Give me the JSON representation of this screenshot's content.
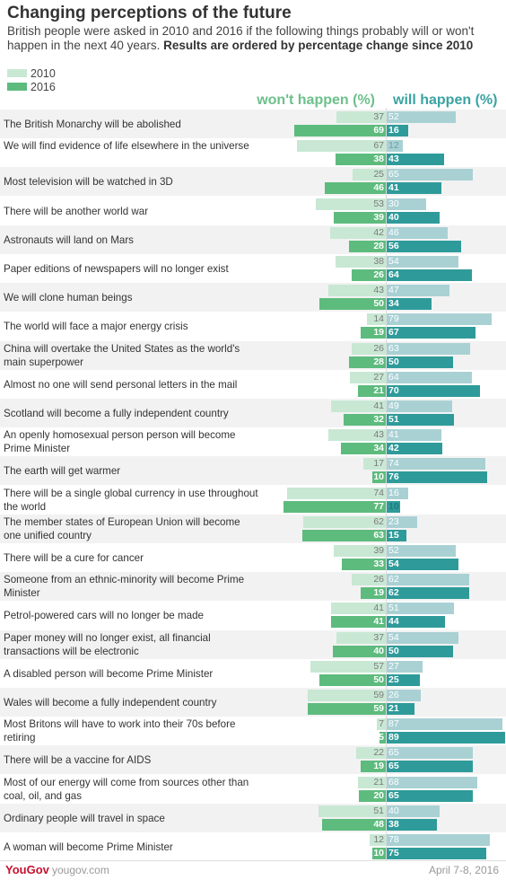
{
  "title": "Changing perceptions of the future",
  "subtitle": "British people were asked in 2010 and 2016 if the following things probably will or won't happen in the next 40 years.",
  "subtitle_bold": "Results are ordered by percentage change since 2010",
  "colors": {
    "wont_2010": "#c8e8d4",
    "wont_2016": "#5dbb7d",
    "will_2010": "#a9d1d4",
    "will_2016": "#2e9b9a"
  },
  "footer": {
    "logo": "YouGov",
    "site": "yougov.com",
    "date": "April 7-8, 2016"
  },
  "chart_data": {
    "type": "bar",
    "legend": [
      "2010",
      "2016"
    ],
    "left_header": "won't happen (%)",
    "right_header": "will happen (%)",
    "rows": [
      {
        "label": "The British Monarchy will be abolished",
        "wont_2010": 37,
        "will_2010": 52,
        "wont_2016": 69,
        "will_2016": 16
      },
      {
        "label": "We will find evidence of life elsewhere in the universe",
        "wont_2010": 67,
        "will_2010": 12,
        "wont_2016": 38,
        "will_2016": 43
      },
      {
        "label": "Most television will be watched in 3D",
        "wont_2010": 25,
        "will_2010": 65,
        "wont_2016": 46,
        "will_2016": 41
      },
      {
        "label": "There will be another world war",
        "wont_2010": 53,
        "will_2010": 30,
        "wont_2016": 39,
        "will_2016": 40
      },
      {
        "label": "Astronauts will land on Mars",
        "wont_2010": 42,
        "will_2010": 46,
        "wont_2016": 28,
        "will_2016": 56
      },
      {
        "label": "Paper editions of newspapers will no longer exist",
        "wont_2010": 38,
        "will_2010": 54,
        "wont_2016": 26,
        "will_2016": 64
      },
      {
        "label": "We will clone human beings",
        "wont_2010": 43,
        "will_2010": 47,
        "wont_2016": 50,
        "will_2016": 34
      },
      {
        "label": "The world will face a major energy crisis",
        "wont_2010": 14,
        "will_2010": 79,
        "wont_2016": 19,
        "will_2016": 67
      },
      {
        "label": "China will overtake the United States as the world's main superpower",
        "wont_2010": 26,
        "will_2010": 63,
        "wont_2016": 28,
        "will_2016": 50
      },
      {
        "label": "Almost no one will send personal letters in the mail",
        "wont_2010": 27,
        "will_2010": 64,
        "wont_2016": 21,
        "will_2016": 70
      },
      {
        "label": "Scotland will become a fully independent country",
        "wont_2010": 41,
        "will_2010": 49,
        "wont_2016": 32,
        "will_2016": 51
      },
      {
        "label": "An openly homosexual person person will become Prime Minister",
        "wont_2010": 43,
        "will_2010": 41,
        "wont_2016": 34,
        "will_2016": 42
      },
      {
        "label": "The earth will get warmer",
        "wont_2010": 17,
        "will_2010": 74,
        "wont_2016": 10,
        "will_2016": 76
      },
      {
        "label": "There will be a single global currency in use throughout the world",
        "wont_2010": 74,
        "will_2010": 16,
        "wont_2016": 77,
        "will_2016": 10
      },
      {
        "label": "The member states of European Union will become one unified country",
        "wont_2010": 62,
        "will_2010": 23,
        "wont_2016": 63,
        "will_2016": 15
      },
      {
        "label": "There will be a cure for cancer",
        "wont_2010": 39,
        "will_2010": 52,
        "wont_2016": 33,
        "will_2016": 54
      },
      {
        "label": "Someone from an ethnic-minority will become Prime Minister",
        "wont_2010": 26,
        "will_2010": 62,
        "wont_2016": 19,
        "will_2016": 62
      },
      {
        "label": "Petrol-powered cars will no longer be made",
        "wont_2010": 41,
        "will_2010": 51,
        "wont_2016": 41,
        "will_2016": 44
      },
      {
        "label": "Paper money will no longer exist, all financial transactions will be electronic",
        "wont_2010": 37,
        "will_2010": 54,
        "wont_2016": 40,
        "will_2016": 50
      },
      {
        "label": "A disabled person will become Prime Minister",
        "wont_2010": 57,
        "will_2010": 27,
        "wont_2016": 50,
        "will_2016": 25
      },
      {
        "label": "Wales will become a fully independent country",
        "wont_2010": 59,
        "will_2010": 26,
        "wont_2016": 59,
        "will_2016": 21
      },
      {
        "label": "Most Britons will have to work into their 70s before retiring",
        "wont_2010": 7,
        "will_2010": 87,
        "wont_2016": 5,
        "will_2016": 89
      },
      {
        "label": "There will be a vaccine for AIDS",
        "wont_2010": 22,
        "will_2010": 65,
        "wont_2016": 19,
        "will_2016": 65
      },
      {
        "label": "Most of our energy will come from sources other than coal, oil, and gas",
        "wont_2010": 21,
        "will_2010": 68,
        "wont_2016": 20,
        "will_2016": 65
      },
      {
        "label": "Ordinary people will travel in space",
        "wont_2010": 51,
        "will_2010": 40,
        "wont_2016": 48,
        "will_2016": 38
      },
      {
        "label": "A woman will become Prime Minister",
        "wont_2010": 12,
        "will_2010": 78,
        "wont_2016": 10,
        "will_2016": 75
      }
    ]
  }
}
